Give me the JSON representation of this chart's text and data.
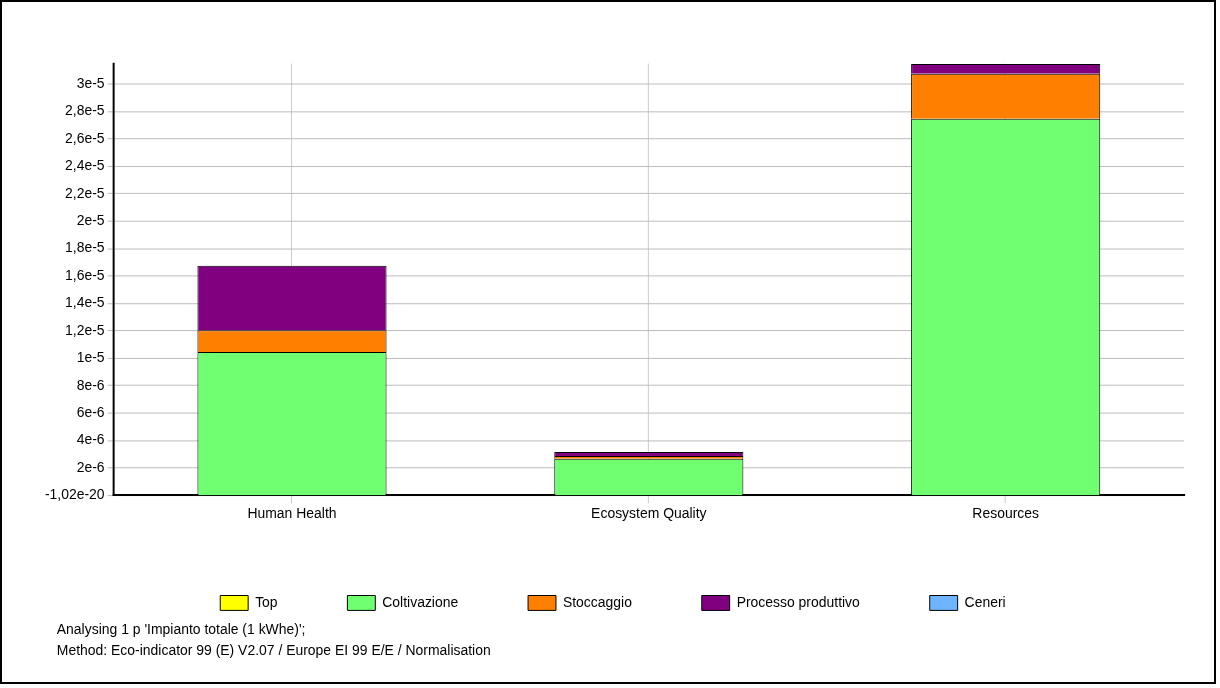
{
  "chart_data": {
    "type": "bar",
    "stacked": true,
    "categories": [
      "Human Health",
      "Ecosystem Quality",
      "Resources"
    ],
    "series": [
      {
        "name": "Top",
        "color": "#ffff00",
        "values": [
          0,
          0,
          0
        ]
      },
      {
        "name": "Coltivazione",
        "color": "#70ff70",
        "values": [
          1.045e-05,
          2.66e-06,
          2.747e-05
        ]
      },
      {
        "name": "Stoccaggio",
        "color": "#ff8000",
        "values": [
          1.6e-06,
          2e-07,
          3.3e-06
        ]
      },
      {
        "name": "Processo produttivo",
        "color": "#800080",
        "values": [
          4.7e-06,
          3e-07,
          7e-07
        ]
      },
      {
        "name": "Ceneri",
        "color": "#6eb4ff",
        "values": [
          0,
          0,
          0
        ]
      }
    ],
    "ylim": [
      -1.02e-20,
      3.15e-05
    ],
    "yticks": [
      {
        "value": -1.02e-20,
        "label": "-1,02e-20"
      },
      {
        "value": 2e-06,
        "label": "2e-6"
      },
      {
        "value": 4e-06,
        "label": "4e-6"
      },
      {
        "value": 6e-06,
        "label": "6e-6"
      },
      {
        "value": 8e-06,
        "label": "8e-6"
      },
      {
        "value": 1e-05,
        "label": "1e-5"
      },
      {
        "value": 1.2e-05,
        "label": "1,2e-5"
      },
      {
        "value": 1.4e-05,
        "label": "1,4e-5"
      },
      {
        "value": 1.6e-05,
        "label": "1,6e-5"
      },
      {
        "value": 1.8e-05,
        "label": "1,8e-5"
      },
      {
        "value": 2e-05,
        "label": "2e-5"
      },
      {
        "value": 2.2e-05,
        "label": "2,2e-5"
      },
      {
        "value": 2.4e-05,
        "label": "2,4e-5"
      },
      {
        "value": 2.6e-05,
        "label": "2,6e-5"
      },
      {
        "value": 2.8e-05,
        "label": "2,8e-5"
      },
      {
        "value": 3e-05,
        "label": "3e-5"
      }
    ],
    "grid": true,
    "legend": "bottom",
    "annotations": [
      "Analysing 1 p 'Impianto totale (1 kWhe)';",
      "Method: Eco-indicator 99 (E) V2.07 / Europe EI 99 E/E / Normalisation"
    ]
  }
}
